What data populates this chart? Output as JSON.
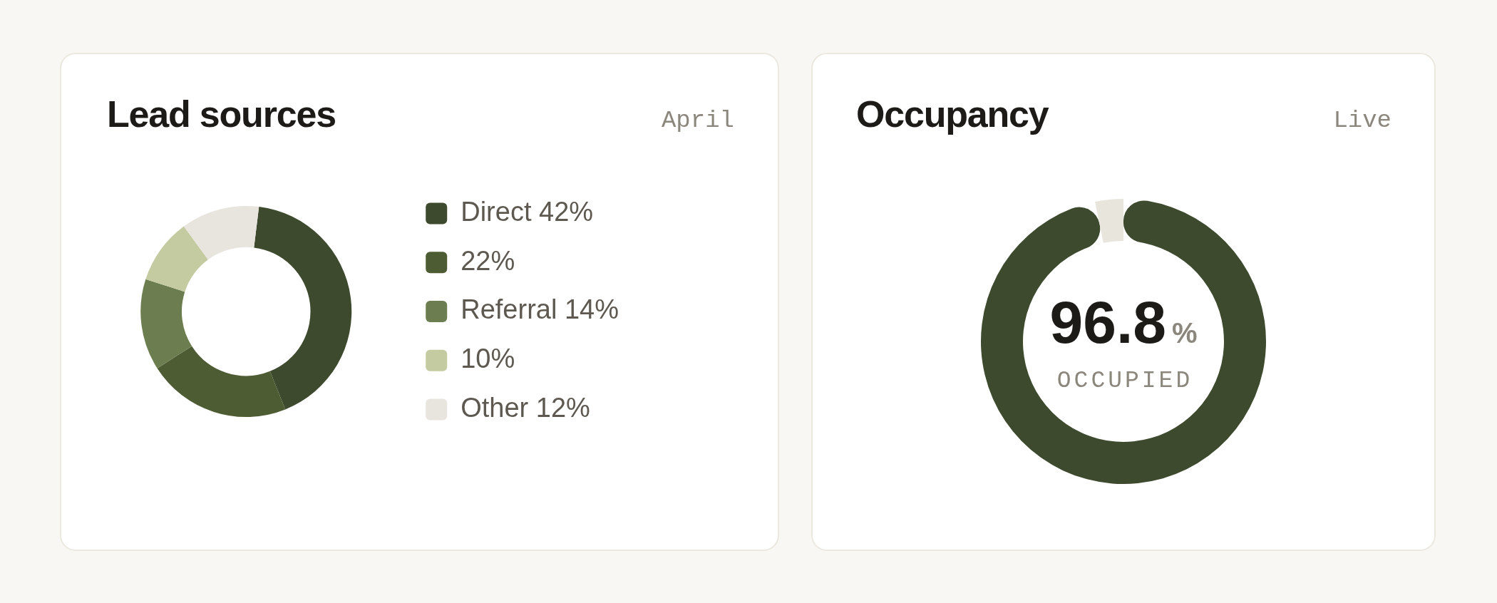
{
  "chart_data": [
    {
      "type": "donut",
      "title": "Lead sources",
      "subtitle": "April",
      "categories": [
        "Direct 42%",
        "22%",
        "Referral 14%",
        "10%",
        "Other 12%"
      ],
      "values": [
        42,
        22,
        14,
        10,
        12
      ],
      "colors": [
        "#3d4a2e",
        "#4e5c33",
        "#6c7d4f",
        "#c5cba0",
        "#e8e5de"
      ],
      "legend": "right"
    },
    {
      "type": "donut",
      "title": "Occupancy",
      "subtitle": "Live",
      "categories": [
        "OCCUPIED",
        null
      ],
      "values": [
        96.8,
        3.2
      ],
      "colors": [
        "#3d4a2e",
        "#e8e5dc"
      ],
      "value_labels": [
        "96.8%",
        null
      ]
    }
  ]
}
